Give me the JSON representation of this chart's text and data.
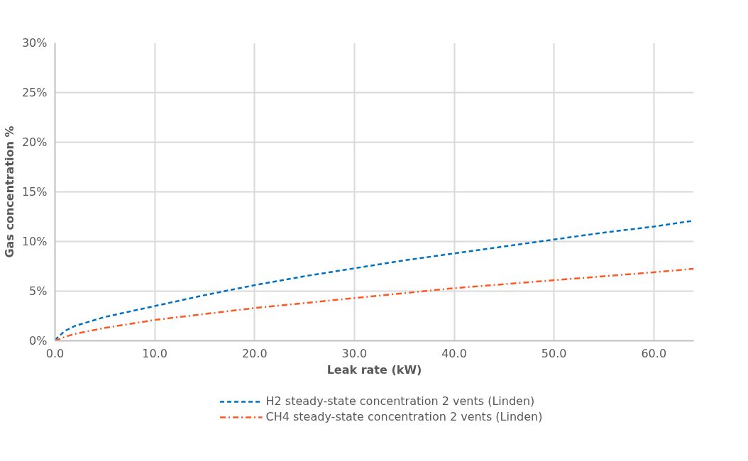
{
  "chart_data": {
    "type": "line",
    "xlabel": "Leak rate (kW)",
    "ylabel": "Gas concentration %",
    "xlim": [
      0,
      64
    ],
    "ylim": [
      0,
      30
    ],
    "xticks": [
      {
        "value": 0,
        "label": "0.0"
      },
      {
        "value": 10,
        "label": "10.0"
      },
      {
        "value": 20,
        "label": "20.0"
      },
      {
        "value": 30,
        "label": "30.0"
      },
      {
        "value": 40,
        "label": "40.0"
      },
      {
        "value": 50,
        "label": "50.0"
      },
      {
        "value": 60,
        "label": "60.0"
      }
    ],
    "yticks": [
      {
        "value": 0,
        "label": "0%"
      },
      {
        "value": 5,
        "label": "5%"
      },
      {
        "value": 10,
        "label": "10%"
      },
      {
        "value": 15,
        "label": "15%"
      },
      {
        "value": 20,
        "label": "20%"
      },
      {
        "value": 25,
        "label": "25%"
      },
      {
        "value": 30,
        "label": "30%"
      }
    ],
    "x": [
      0,
      1,
      2,
      5,
      10,
      15,
      20,
      25,
      30,
      35,
      40,
      45,
      50,
      55,
      60,
      64
    ],
    "series": [
      {
        "name": "H2 steady-state concentration 2 vents (Linden)",
        "color": "#0070c0",
        "line_style": "dashed",
        "values": [
          0.1,
          1.0,
          1.5,
          2.4,
          3.5,
          4.6,
          5.6,
          6.5,
          7.3,
          8.1,
          8.8,
          9.5,
          10.2,
          10.9,
          11.5,
          12.1
        ]
      },
      {
        "name": "CH4 steady-state concentration 2 vents (Linden)",
        "color": "#ff5722",
        "line_style": "dashdot",
        "values": [
          0.0,
          0.4,
          0.7,
          1.3,
          2.1,
          2.7,
          3.3,
          3.8,
          4.3,
          4.8,
          5.3,
          5.7,
          6.1,
          6.5,
          6.9,
          7.25
        ]
      }
    ],
    "grid": true,
    "legend": "bottom"
  }
}
